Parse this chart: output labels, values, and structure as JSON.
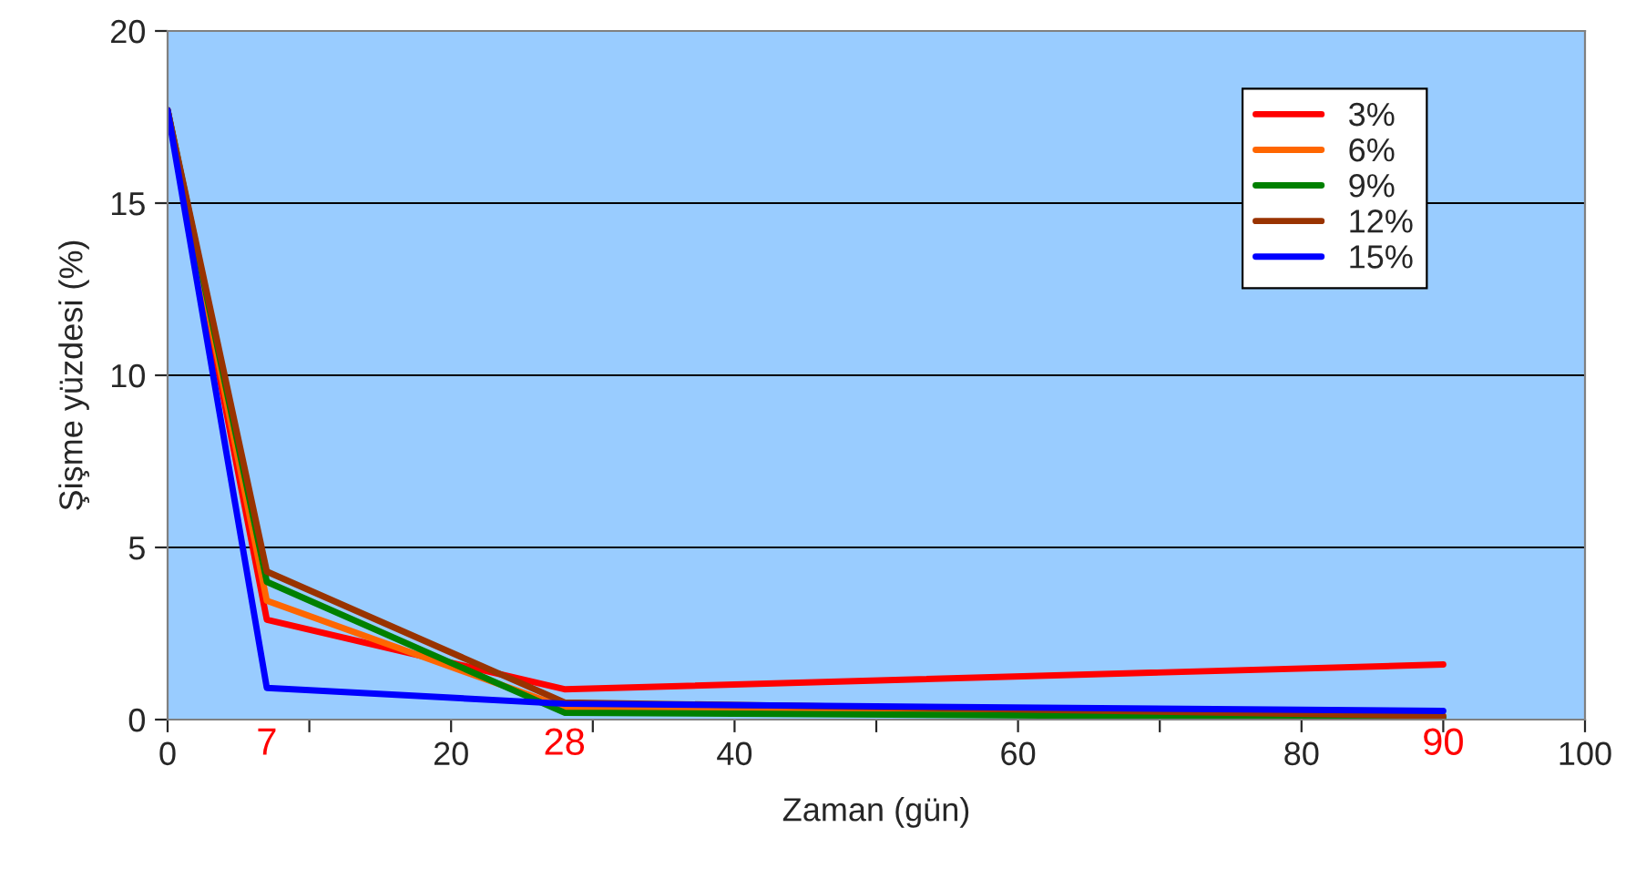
{
  "chart_data": {
    "type": "line",
    "xlabel": "Zaman (gün)",
    "ylabel": "Şişme yüzdesi (%)",
    "x": [
      0,
      7,
      28,
      90
    ],
    "series": [
      {
        "name": "3%",
        "color": "#ff0000",
        "values": [
          17.7,
          2.9,
          0.88,
          1.6
        ]
      },
      {
        "name": "6%",
        "color": "#ff6600",
        "values": [
          17.7,
          3.45,
          0.35,
          0.1
        ]
      },
      {
        "name": "9%",
        "color": "#008000",
        "values": [
          17.7,
          4.0,
          0.2,
          0.05
        ]
      },
      {
        "name": "12%",
        "color": "#993300",
        "values": [
          17.7,
          4.3,
          0.5,
          0.1
        ]
      },
      {
        "name": "15%",
        "color": "#0000ff",
        "values": [
          17.7,
          0.92,
          0.46,
          0.25
        ]
      }
    ],
    "xlim": [
      0,
      100
    ],
    "xticks": [
      0,
      {
        "value": 10,
        "label": null
      },
      20,
      {
        "value": 30,
        "label": null
      },
      40,
      {
        "value": 50,
        "label": null
      },
      60,
      {
        "value": 70,
        "label": null
      },
      80,
      {
        "value": 90,
        "label": null
      },
      100
    ],
    "ylim": [
      0,
      20
    ],
    "yticks": [
      0,
      5,
      10,
      15,
      20
    ],
    "grid": "y",
    "legend": "top right",
    "marker": "none",
    "line_style": "solid",
    "annotations": [
      "7",
      "28",
      "90"
    ]
  }
}
